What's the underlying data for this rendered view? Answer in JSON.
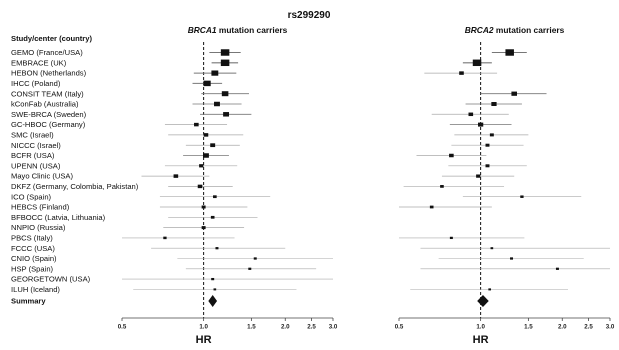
{
  "title": "rs299290",
  "column_header": "Study/center (country)",
  "studies": [
    "GEMO (France/USA)",
    "EMBRACE (UK)",
    "HEBON (Netherlands)",
    "IHCC (Poland)",
    "CONSIT TEAM (Italy)",
    "kConFab (Australia)",
    "SWE-BRCA (Sweden)",
    "GC-HBOC (Germany)",
    "SMC (Israel)",
    "NICCC (Israel)",
    "BCFR (USA)",
    "UPENN (USA)",
    "Mayo Clinic (USA)",
    "DKFZ (Germany, Colombia, Pakistan)",
    "ICO (Spain)",
    "HEBCS (Finland)",
    "BFBOCC (Latvia, Lithuania)",
    "NNPIO (Russia)",
    "PBCS (Italy)",
    "FCCC (USA)",
    "CNIO (Spain)",
    "HSP (Spain)",
    "GEORGETOWN (USA)",
    "ILUH (Iceland)"
  ],
  "summary_label": "Summary",
  "chart_data": [
    {
      "type": "forest",
      "panel_title_gene": "BRCA1",
      "panel_title_rest": " mutation carriers",
      "xlabel": "HR",
      "xscale": "log",
      "xlim": [
        0.5,
        3.0
      ],
      "xticks": [
        "0.5",
        "1.0",
        "1.5",
        "2.0",
        "2.5",
        "3.0"
      ],
      "reference_line": 1.0,
      "estimates": [
        {
          "hr": 1.2,
          "lo": 1.05,
          "hi": 1.37,
          "weight": 1.0
        },
        {
          "hr": 1.2,
          "lo": 1.07,
          "hi": 1.34,
          "weight": 1.0
        },
        {
          "hr": 1.1,
          "lo": 0.92,
          "hi": 1.32,
          "weight": 0.75
        },
        {
          "hr": 1.03,
          "lo": 0.91,
          "hi": 1.17,
          "weight": 0.8
        },
        {
          "hr": 1.2,
          "lo": 0.98,
          "hi": 1.47,
          "weight": 0.7
        },
        {
          "hr": 1.12,
          "lo": 0.91,
          "hi": 1.38,
          "weight": 0.6
        },
        {
          "hr": 1.21,
          "lo": 0.97,
          "hi": 1.5,
          "weight": 0.6
        },
        {
          "hr": 0.94,
          "lo": 0.72,
          "hi": 1.22,
          "weight": 0.4
        },
        {
          "hr": 1.02,
          "lo": 0.74,
          "hi": 1.4,
          "weight": 0.4
        },
        {
          "hr": 1.08,
          "lo": 0.86,
          "hi": 1.36,
          "weight": 0.45
        },
        {
          "hr": 1.02,
          "lo": 0.84,
          "hi": 1.24,
          "weight": 0.6
        },
        {
          "hr": 0.98,
          "lo": 0.72,
          "hi": 1.33,
          "weight": 0.35
        },
        {
          "hr": 0.79,
          "lo": 0.59,
          "hi": 1.05,
          "weight": 0.4
        },
        {
          "hr": 0.97,
          "lo": 0.74,
          "hi": 1.28,
          "weight": 0.4
        },
        {
          "hr": 1.1,
          "lo": 0.69,
          "hi": 1.76,
          "weight": 0.25
        },
        {
          "hr": 1.0,
          "lo": 0.69,
          "hi": 1.45,
          "weight": 0.3
        },
        {
          "hr": 1.08,
          "lo": 0.74,
          "hi": 1.58,
          "weight": 0.25
        },
        {
          "hr": 1.0,
          "lo": 0.71,
          "hi": 1.41,
          "weight": 0.3
        },
        {
          "hr": 0.72,
          "lo": 0.5,
          "hi": 1.3,
          "weight": 0.2
        },
        {
          "hr": 1.12,
          "lo": 0.64,
          "hi": 2.0,
          "weight": 0.15
        },
        {
          "hr": 1.55,
          "lo": 0.8,
          "hi": 3.0,
          "weight": 0.15
        },
        {
          "hr": 1.48,
          "lo": 0.86,
          "hi": 2.6,
          "weight": 0.15
        },
        {
          "hr": 1.08,
          "lo": 0.5,
          "hi": 3.0,
          "weight": 0.15
        },
        {
          "hr": 1.1,
          "lo": 0.55,
          "hi": 2.2,
          "weight": 0.1
        }
      ],
      "summary": {
        "hr": 1.08,
        "lo": 1.04,
        "hi": 1.12
      }
    },
    {
      "type": "forest",
      "panel_title_gene": "BRCA2",
      "panel_title_rest": " mutation carriers",
      "xlabel": "HR",
      "xscale": "log",
      "xlim": [
        0.5,
        3.0
      ],
      "xticks": [
        "0.5",
        "1.0",
        "1.5",
        "2.0",
        "2.5",
        "3.0"
      ],
      "reference_line": 1.0,
      "estimates": [
        {
          "hr": 1.28,
          "lo": 1.1,
          "hi": 1.48,
          "weight": 1.0
        },
        {
          "hr": 0.97,
          "lo": 0.86,
          "hi": 1.1,
          "weight": 1.0
        },
        {
          "hr": 0.85,
          "lo": 0.62,
          "hi": 1.15,
          "weight": 0.4
        },
        {
          "hr": null,
          "lo": null,
          "hi": null,
          "weight": 0
        },
        {
          "hr": 1.33,
          "lo": 1.0,
          "hi": 1.75,
          "weight": 0.55
        },
        {
          "hr": 1.12,
          "lo": 0.88,
          "hi": 1.42,
          "weight": 0.5
        },
        {
          "hr": 0.92,
          "lo": 0.66,
          "hi": 1.27,
          "weight": 0.4
        },
        {
          "hr": 1.0,
          "lo": 0.77,
          "hi": 1.3,
          "weight": 0.5
        },
        {
          "hr": 1.1,
          "lo": 0.8,
          "hi": 1.5,
          "weight": 0.3
        },
        {
          "hr": 1.06,
          "lo": 0.78,
          "hi": 1.44,
          "weight": 0.3
        },
        {
          "hr": 0.78,
          "lo": 0.58,
          "hi": 1.05,
          "weight": 0.4
        },
        {
          "hr": 1.06,
          "lo": 0.76,
          "hi": 1.48,
          "weight": 0.3
        },
        {
          "hr": 0.98,
          "lo": 0.72,
          "hi": 1.33,
          "weight": 0.35
        },
        {
          "hr": 0.72,
          "lo": 0.52,
          "hi": 1.22,
          "weight": 0.25
        },
        {
          "hr": 1.42,
          "lo": 0.86,
          "hi": 2.35,
          "weight": 0.2
        },
        {
          "hr": 0.66,
          "lo": 0.5,
          "hi": 1.1,
          "weight": 0.25
        },
        {
          "hr": null,
          "lo": null,
          "hi": null,
          "weight": 0
        },
        {
          "hr": null,
          "lo": null,
          "hi": null,
          "weight": 0
        },
        {
          "hr": 0.78,
          "lo": 0.5,
          "hi": 1.45,
          "weight": 0.15
        },
        {
          "hr": 1.1,
          "lo": 0.6,
          "hi": 3.0,
          "weight": 0.1
        },
        {
          "hr": 1.3,
          "lo": 0.7,
          "hi": 2.4,
          "weight": 0.15
        },
        {
          "hr": 1.92,
          "lo": 0.6,
          "hi": 3.0,
          "weight": 0.15
        },
        {
          "hr": null,
          "lo": null,
          "hi": null,
          "weight": 0
        },
        {
          "hr": 1.08,
          "lo": 0.55,
          "hi": 2.1,
          "weight": 0.1
        }
      ],
      "summary": {
        "hr": 1.02,
        "lo": 0.97,
        "hi": 1.07
      }
    }
  ]
}
